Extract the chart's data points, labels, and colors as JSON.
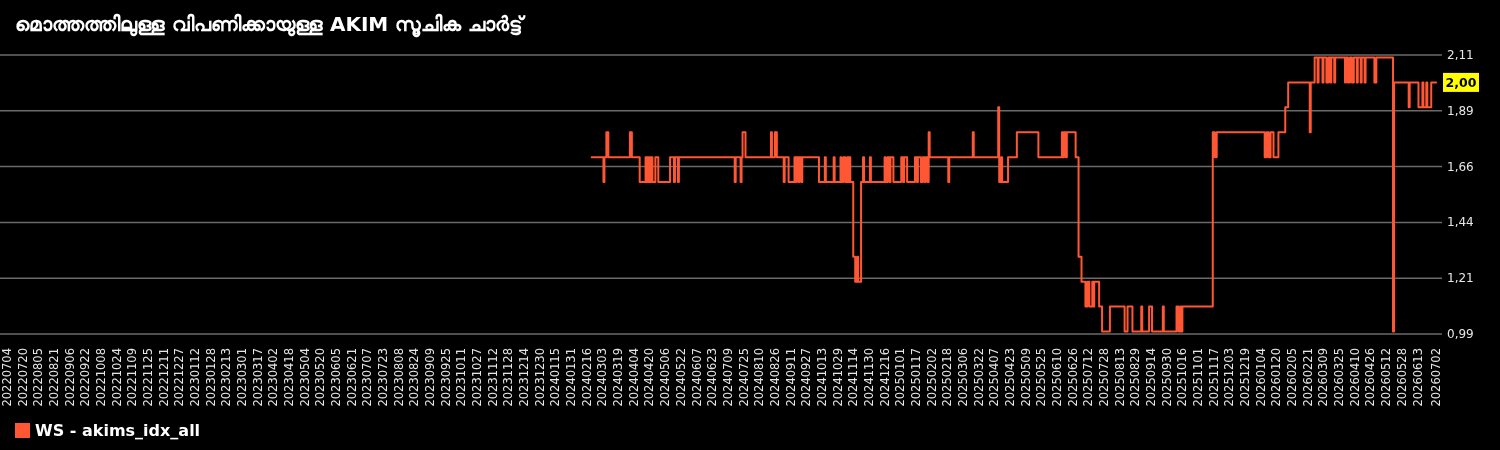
{
  "chart_data": {
    "type": "step",
    "title": "മൊത്തത്തിലുള്ള വിപണിക്കായുള്ള AKIM സൂചിക ചാർട്ട്",
    "x": [
      "2024-02-21",
      "2024-03-04",
      "2024-03-05",
      "2024-03-07",
      "2024-03-09",
      "2024-03-31",
      "2024-04-02",
      "2024-04-10",
      "2024-04-16",
      "2024-04-17",
      "2024-04-18",
      "2024-04-19",
      "2024-04-20",
      "2024-04-21",
      "2024-04-22",
      "2024-04-23",
      "2024-04-26",
      "2024-04-29",
      "2024-05-11",
      "2024-05-15",
      "2024-05-16",
      "2024-05-19",
      "2024-05-20",
      "2024-07-16",
      "2024-07-17",
      "2024-07-22",
      "2024-07-23",
      "2024-07-24",
      "2024-07-27",
      "2024-08-22",
      "2024-08-23",
      "2024-08-26",
      "2024-08-28",
      "2024-09-04",
      "2024-09-05",
      "2024-09-09",
      "2024-09-15",
      "2024-09-16",
      "2024-09-17",
      "2024-09-19",
      "2024-09-20",
      "2024-09-22",
      "2024-09-23",
      "2024-10-10",
      "2024-10-16",
      "2024-10-17",
      "2024-10-25",
      "2024-10-26",
      "2024-11-01",
      "2024-11-02",
      "2024-11-04",
      "2024-11-06",
      "2024-11-08",
      "2024-11-09",
      "2024-11-10",
      "2024-11-11",
      "2024-11-14",
      "2024-11-16",
      "2024-11-18",
      "2024-11-19",
      "2024-11-22",
      "2024-11-24",
      "2024-11-25",
      "2024-12-01",
      "2024-12-02",
      "2024-12-16",
      "2024-12-17",
      "2024-12-19",
      "2024-12-21",
      "2024-12-22",
      "2024-12-25",
      "2025-01-02",
      "2025-01-04",
      "2025-01-05",
      "2025-01-08",
      "2025-01-16",
      "2025-01-18",
      "2025-01-19",
      "2025-01-22",
      "2025-01-24",
      "2025-01-26",
      "2025-01-27",
      "2025-01-29",
      "2025-01-30",
      "2025-01-31",
      "2025-02-19",
      "2025-02-20",
      "2025-03-16",
      "2025-03-17",
      "2025-04-11",
      "2025-04-12",
      "2025-04-14",
      "2025-04-15",
      "2025-04-21",
      "2025-04-30",
      "2025-05-22",
      "2025-06-15",
      "2025-06-16",
      "2025-06-17",
      "2025-06-19",
      "2025-06-20",
      "2025-06-29",
      "2025-07-02",
      "2025-07-05",
      "2025-07-09",
      "2025-07-11",
      "2025-07-13",
      "2025-07-16",
      "2025-07-17",
      "2025-07-18",
      "2025-07-23",
      "2025-07-26",
      "2025-08-03",
      "2025-08-18",
      "2025-08-21",
      "2025-08-26",
      "2025-09-04",
      "2025-09-05",
      "2025-09-12",
      "2025-09-15",
      "2025-09-26",
      "2025-09-27",
      "2025-10-10",
      "2025-10-12",
      "2025-10-14",
      "2025-10-15",
      "2025-10-16",
      "2025-11-16",
      "2025-11-18",
      "2025-11-20",
      "2026-01-08",
      "2026-01-10",
      "2026-01-12",
      "2026-01-14",
      "2026-01-17",
      "2026-01-22",
      "2026-01-29",
      "2026-02-01",
      "2026-02-23",
      "2026-02-24",
      "2026-02-28",
      "2026-03-03",
      "2026-03-04",
      "2026-03-08",
      "2026-03-09",
      "2026-03-12",
      "2026-03-14",
      "2026-03-16",
      "2026-03-17",
      "2026-03-20",
      "2026-03-21",
      "2026-03-31",
      "2026-04-01",
      "2026-04-03",
      "2026-04-05",
      "2026-04-07",
      "2026-04-09",
      "2026-04-12",
      "2026-04-13",
      "2026-04-16",
      "2026-04-17",
      "2026-04-20",
      "2026-04-21",
      "2026-04-30",
      "2026-05-02",
      "2026-05-19",
      "2026-05-20",
      "2026-06-04",
      "2026-06-05",
      "2026-06-14",
      "2026-06-18",
      "2026-06-19",
      "2026-06-22",
      "2026-06-23",
      "2026-06-27",
      "2026-07-02"
    ],
    "series": [
      {
        "name": "WS - akims_idx_all",
        "color": "#ff5733",
        "values": [
          1.7,
          1.6,
          1.7,
          1.8,
          1.7,
          1.8,
          1.7,
          1.6,
          1.7,
          1.6,
          1.7,
          1.6,
          1.7,
          1.6,
          1.7,
          1.6,
          1.7,
          1.6,
          1.7,
          1.6,
          1.7,
          1.6,
          1.7,
          1.6,
          1.7,
          1.6,
          1.7,
          1.8,
          1.7,
          1.8,
          1.7,
          1.8,
          1.7,
          1.6,
          1.7,
          1.6,
          1.7,
          1.6,
          1.7,
          1.6,
          1.7,
          1.6,
          1.7,
          1.6,
          1.7,
          1.6,
          1.7,
          1.6,
          1.7,
          1.6,
          1.7,
          1.6,
          1.7,
          1.6,
          1.7,
          1.6,
          1.3,
          1.2,
          1.3,
          1.2,
          1.6,
          1.7,
          1.6,
          1.7,
          1.6,
          1.7,
          1.6,
          1.7,
          1.6,
          1.7,
          1.6,
          1.7,
          1.6,
          1.7,
          1.6,
          1.7,
          1.6,
          1.7,
          1.6,
          1.7,
          1.6,
          1.7,
          1.6,
          1.8,
          1.7,
          1.6,
          1.7,
          1.8,
          1.7,
          1.9,
          1.6,
          1.7,
          1.6,
          1.7,
          1.8,
          1.7,
          1.8,
          1.7,
          1.8,
          1.7,
          1.8,
          1.7,
          1.3,
          1.2,
          1.1,
          1.2,
          1.1,
          1.2,
          1.1,
          1.2,
          1.1,
          1.0,
          1.1,
          1.0,
          1.1,
          1.0,
          1.1,
          1.0,
          1.1,
          1.0,
          1.1,
          1.0,
          1.1,
          1.0,
          1.1,
          1.0,
          1.1,
          1.8,
          1.7,
          1.8,
          1.7,
          1.8,
          1.7,
          1.8,
          1.7,
          1.8,
          1.9,
          2.0,
          1.8,
          2.0,
          2.1,
          2.0,
          2.1,
          2.0,
          2.1,
          2.0,
          2.1,
          2.0,
          2.1,
          2.0,
          2.1,
          2.0,
          2.1,
          2.0,
          2.1,
          2.0,
          2.1,
          2.0,
          2.1,
          2.0,
          2.1,
          2.0,
          2.1,
          2.0,
          2.1,
          1.0,
          2.0,
          1.9,
          2.0,
          1.9,
          2.0,
          1.9,
          2.0,
          1.9,
          2.0,
          2.0
        ]
      }
    ],
    "xlim": [
      "2022-06-27",
      "2026-07-08"
    ],
    "xticks": [
      {
        "value": "2022-07-04",
        "label": "20220704"
      },
      {
        "value": "2022-07-20",
        "label": "20220720"
      },
      {
        "value": "2022-08-05",
        "label": "20220805"
      },
      {
        "value": "2022-08-21",
        "label": "20220821"
      },
      {
        "value": "2022-09-06",
        "label": "20220906"
      },
      {
        "value": "2022-09-22",
        "label": "20220922"
      },
      {
        "value": "2022-10-08",
        "label": "20221008"
      },
      {
        "value": "2022-10-24",
        "label": "20221024"
      },
      {
        "value": "2022-11-09",
        "label": "20221109"
      },
      {
        "value": "2022-11-25",
        "label": "20221125"
      },
      {
        "value": "2022-12-11",
        "label": "20221211"
      },
      {
        "value": "2022-12-27",
        "label": "20221227"
      },
      {
        "value": "2023-01-12",
        "label": "20230112"
      },
      {
        "value": "2023-01-28",
        "label": "20230128"
      },
      {
        "value": "2023-02-13",
        "label": "20230213"
      },
      {
        "value": "2023-03-01",
        "label": "20230301"
      },
      {
        "value": "2023-03-17",
        "label": "20230317"
      },
      {
        "value": "2023-04-02",
        "label": "20230402"
      },
      {
        "value": "2023-04-18",
        "label": "20230418"
      },
      {
        "value": "2023-05-04",
        "label": "20230504"
      },
      {
        "value": "2023-05-20",
        "label": "20230520"
      },
      {
        "value": "2023-06-05",
        "label": "20230605"
      },
      {
        "value": "2023-06-21",
        "label": "20230621"
      },
      {
        "value": "2023-07-07",
        "label": "20230707"
      },
      {
        "value": "2023-07-23",
        "label": "20230723"
      },
      {
        "value": "2023-08-08",
        "label": "20230808"
      },
      {
        "value": "2023-08-24",
        "label": "20230824"
      },
      {
        "value": "2023-09-09",
        "label": "20230909"
      },
      {
        "value": "2023-09-25",
        "label": "20230925"
      },
      {
        "value": "2023-10-11",
        "label": "20231011"
      },
      {
        "value": "2023-10-27",
        "label": "20231027"
      },
      {
        "value": "2023-11-12",
        "label": "20231112"
      },
      {
        "value": "2023-11-28",
        "label": "20231128"
      },
      {
        "value": "2023-12-14",
        "label": "20231214"
      },
      {
        "value": "2023-12-30",
        "label": "20231230"
      },
      {
        "value": "2024-01-15",
        "label": "20240115"
      },
      {
        "value": "2024-01-31",
        "label": "20240131"
      },
      {
        "value": "2024-02-16",
        "label": "20240216"
      },
      {
        "value": "2024-03-03",
        "label": "20240303"
      },
      {
        "value": "2024-03-19",
        "label": "20240319"
      },
      {
        "value": "2024-04-04",
        "label": "20240404"
      },
      {
        "value": "2024-04-20",
        "label": "20240420"
      },
      {
        "value": "2024-05-06",
        "label": "20240506"
      },
      {
        "value": "2024-05-22",
        "label": "20240522"
      },
      {
        "value": "2024-06-07",
        "label": "20240607"
      },
      {
        "value": "2024-06-23",
        "label": "20240623"
      },
      {
        "value": "2024-07-09",
        "label": "20240709"
      },
      {
        "value": "2024-07-25",
        "label": "20240725"
      },
      {
        "value": "2024-08-10",
        "label": "20240810"
      },
      {
        "value": "2024-08-26",
        "label": "20240826"
      },
      {
        "value": "2024-09-11",
        "label": "20240911"
      },
      {
        "value": "2024-09-27",
        "label": "20240927"
      },
      {
        "value": "2024-10-13",
        "label": "20241013"
      },
      {
        "value": "2024-10-29",
        "label": "20241029"
      },
      {
        "value": "2024-11-14",
        "label": "20241114"
      },
      {
        "value": "2024-11-30",
        "label": "20241130"
      },
      {
        "value": "2024-12-16",
        "label": "20241216"
      },
      {
        "value": "2025-01-01",
        "label": "20250101"
      },
      {
        "value": "2025-01-17",
        "label": "20250117"
      },
      {
        "value": "2025-02-02",
        "label": "20250202"
      },
      {
        "value": "2025-02-18",
        "label": "20250218"
      },
      {
        "value": "2025-03-06",
        "label": "20250306"
      },
      {
        "value": "2025-03-22",
        "label": "20250322"
      },
      {
        "value": "2025-04-07",
        "label": "20250407"
      },
      {
        "value": "2025-04-23",
        "label": "20250423"
      },
      {
        "value": "2025-05-09",
        "label": "20250509"
      },
      {
        "value": "2025-05-25",
        "label": "20250525"
      },
      {
        "value": "2025-06-10",
        "label": "20250610"
      },
      {
        "value": "2025-06-26",
        "label": "20250626"
      },
      {
        "value": "2025-07-12",
        "label": "20250712"
      },
      {
        "value": "2025-07-28",
        "label": "20250728"
      },
      {
        "value": "2025-08-13",
        "label": "20250813"
      },
      {
        "value": "2025-08-29",
        "label": "20250829"
      },
      {
        "value": "2025-09-14",
        "label": "20250914"
      },
      {
        "value": "2025-09-30",
        "label": "20250930"
      },
      {
        "value": "2025-10-16",
        "label": "20251016"
      },
      {
        "value": "2025-11-01",
        "label": "20251101"
      },
      {
        "value": "2025-11-17",
        "label": "20251117"
      },
      {
        "value": "2025-12-03",
        "label": "20251203"
      },
      {
        "value": "2025-12-19",
        "label": "20251219"
      },
      {
        "value": "2026-01-04",
        "label": "20260104"
      },
      {
        "value": "2026-01-20",
        "label": "20260120"
      },
      {
        "value": "2026-02-05",
        "label": "20260205"
      },
      {
        "value": "2026-02-21",
        "label": "20260221"
      },
      {
        "value": "2026-03-09",
        "label": "20260309"
      },
      {
        "value": "2026-03-25",
        "label": "20260325"
      },
      {
        "value": "2026-04-10",
        "label": "20260410"
      },
      {
        "value": "2026-04-26",
        "label": "20260426"
      },
      {
        "value": "2026-05-12",
        "label": "20260512"
      },
      {
        "value": "2026-05-28",
        "label": "20260528"
      },
      {
        "value": "2026-06-13",
        "label": "20260613"
      },
      {
        "value": "2026-07-02",
        "label": "20260702"
      }
    ],
    "ylim": [
      0.99,
      2.11
    ],
    "yticks": [
      {
        "value": 0.99,
        "label": "0,99"
      },
      {
        "value": 1.214,
        "label": "1,21"
      },
      {
        "value": 1.438,
        "label": "1,44"
      },
      {
        "value": 1.662,
        "label": "1,66"
      },
      {
        "value": 1.886,
        "label": "1,89"
      },
      {
        "value": 2.11,
        "label": "2,11"
      }
    ],
    "grid": "y",
    "legend": "bottom left",
    "annotations": [
      {
        "text": "2,00",
        "y": 2.0
      }
    ]
  }
}
